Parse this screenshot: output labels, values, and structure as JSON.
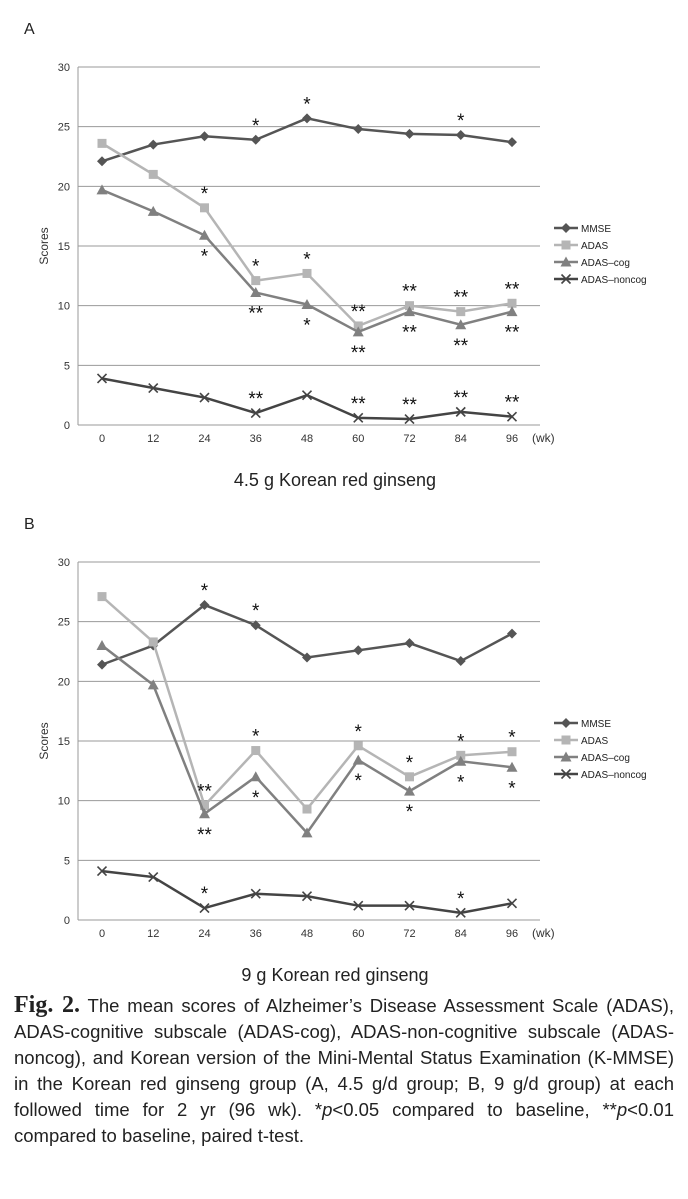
{
  "chart_data": [
    {
      "type": "line",
      "panel_label": "A",
      "title": "4.5 g Korean red ginseng",
      "ylabel": "Scores",
      "xlabel": "(wk)",
      "x": [
        0,
        12,
        24,
        36,
        48,
        60,
        72,
        84,
        96
      ],
      "ylim": [
        0,
        30
      ],
      "yticks": [
        0,
        5,
        10,
        15,
        20,
        25,
        30
      ],
      "grid": true,
      "legend_position": "right",
      "series": [
        {
          "name": "MMSE",
          "marker": "diamond",
          "color": "#555555",
          "values": [
            22.1,
            23.5,
            24.2,
            23.9,
            25.7,
            24.8,
            24.4,
            24.3,
            23.7
          ],
          "annotations": [
            {
              "x": 36,
              "text": "*",
              "pos": "above"
            },
            {
              "x": 48,
              "text": "*",
              "pos": "above"
            },
            {
              "x": 84,
              "text": "*",
              "pos": "above"
            }
          ]
        },
        {
          "name": "ADAS",
          "marker": "square",
          "color": "#b5b5b5",
          "values": [
            23.6,
            21.0,
            18.2,
            12.1,
            12.7,
            8.3,
            10.0,
            9.5,
            10.2
          ],
          "annotations": [
            {
              "x": 24,
              "text": "*",
              "pos": "above"
            },
            {
              "x": 36,
              "text": "*",
              "pos": "above"
            },
            {
              "x": 48,
              "text": "*",
              "pos": "above"
            },
            {
              "x": 60,
              "text": "**",
              "pos": "above"
            },
            {
              "x": 72,
              "text": "**",
              "pos": "above"
            },
            {
              "x": 84,
              "text": "**",
              "pos": "above"
            },
            {
              "x": 96,
              "text": "**",
              "pos": "above"
            }
          ]
        },
        {
          "name": "ADAS–cog",
          "marker": "triangle",
          "color": "#808080",
          "values": [
            19.7,
            17.9,
            15.9,
            11.1,
            10.1,
            7.8,
            9.5,
            8.4,
            9.5
          ],
          "annotations": [
            {
              "x": 24,
              "text": "*",
              "pos": "below"
            },
            {
              "x": 36,
              "text": "**",
              "pos": "below"
            },
            {
              "x": 48,
              "text": "*",
              "pos": "below"
            },
            {
              "x": 60,
              "text": "**",
              "pos": "below"
            },
            {
              "x": 72,
              "text": "**",
              "pos": "below"
            },
            {
              "x": 84,
              "text": "**",
              "pos": "below"
            },
            {
              "x": 96,
              "text": "**",
              "pos": "below"
            }
          ]
        },
        {
          "name": "ADAS–noncog",
          "marker": "x",
          "color": "#444444",
          "values": [
            3.9,
            3.1,
            2.3,
            1.0,
            2.5,
            0.6,
            0.5,
            1.1,
            0.7
          ],
          "annotations": [
            {
              "x": 36,
              "text": "**",
              "pos": "above"
            },
            {
              "x": 60,
              "text": "**",
              "pos": "above"
            },
            {
              "x": 72,
              "text": "**",
              "pos": "above"
            },
            {
              "x": 84,
              "text": "**",
              "pos": "above"
            },
            {
              "x": 96,
              "text": "**",
              "pos": "above"
            }
          ]
        }
      ]
    },
    {
      "type": "line",
      "panel_label": "B",
      "title": "9 g Korean red ginseng",
      "ylabel": "Scores",
      "xlabel": "(wk)",
      "x": [
        0,
        12,
        24,
        36,
        48,
        60,
        72,
        84,
        96
      ],
      "ylim": [
        0,
        30
      ],
      "yticks": [
        0,
        5,
        10,
        15,
        20,
        25,
        30
      ],
      "grid": true,
      "legend_position": "right",
      "series": [
        {
          "name": "MMSE",
          "marker": "diamond",
          "color": "#555555",
          "values": [
            21.4,
            23.0,
            26.4,
            24.7,
            22.0,
            22.6,
            23.2,
            21.7,
            24.0
          ],
          "annotations": [
            {
              "x": 24,
              "text": "*",
              "pos": "above"
            },
            {
              "x": 36,
              "text": "*",
              "pos": "above"
            }
          ]
        },
        {
          "name": "ADAS",
          "marker": "square",
          "color": "#b5b5b5",
          "values": [
            27.1,
            23.3,
            9.6,
            14.2,
            9.3,
            14.6,
            12.0,
            13.8,
            14.1
          ],
          "annotations": [
            {
              "x": 24,
              "text": "**",
              "pos": "above"
            },
            {
              "x": 36,
              "text": "*",
              "pos": "above"
            },
            {
              "x": 60,
              "text": "*",
              "pos": "above"
            },
            {
              "x": 72,
              "text": "*",
              "pos": "above"
            },
            {
              "x": 84,
              "text": "*",
              "pos": "above"
            },
            {
              "x": 96,
              "text": "*",
              "pos": "above"
            }
          ]
        },
        {
          "name": "ADAS–cog",
          "marker": "triangle",
          "color": "#808080",
          "values": [
            23.0,
            19.7,
            8.9,
            12.0,
            7.3,
            13.4,
            10.8,
            13.3,
            12.8
          ],
          "annotations": [
            {
              "x": 24,
              "text": "**",
              "pos": "below"
            },
            {
              "x": 36,
              "text": "*",
              "pos": "below"
            },
            {
              "x": 60,
              "text": "*",
              "pos": "below"
            },
            {
              "x": 72,
              "text": "*",
              "pos": "below"
            },
            {
              "x": 84,
              "text": "*",
              "pos": "below"
            },
            {
              "x": 96,
              "text": "*",
              "pos": "below"
            }
          ]
        },
        {
          "name": "ADAS–noncog",
          "marker": "x",
          "color": "#444444",
          "values": [
            4.1,
            3.6,
            1.0,
            2.2,
            2.0,
            1.2,
            1.2,
            0.6,
            1.4
          ],
          "annotations": [
            {
              "x": 24,
              "text": "*",
              "pos": "above"
            },
            {
              "x": 84,
              "text": "*",
              "pos": "above"
            }
          ]
        }
      ]
    }
  ],
  "caption": {
    "fig_label": "Fig. 2.",
    "text_1": " The mean scores of Alzheimer’s Disease Assessment Scale (ADAS), ADAS-cognitive subscale (ADAS-cog), ADAS-non-cognitive subscale (ADAS-noncog), and Korean version of the Mini-Mental Status Examination (K-MMSE) in the Korean red ginseng group (A, 4.5 g/d group; B, 9 g/d group) at each followed time for 2 yr (96 wk). *",
    "p_1": "p",
    "text_2": "<0.05 compared to baseline, **",
    "p_2": "p",
    "text_3": "<0.01 compared to baseline, paired t-test."
  }
}
